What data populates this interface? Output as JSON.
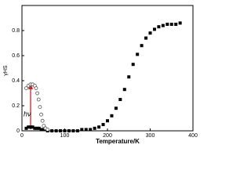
{
  "chart_data": {
    "type": "scatter",
    "x_label": "Temperature/K",
    "y_label": "γHS",
    "annotation": "hν",
    "annotation_color": "#d0202a",
    "xlim": [
      0,
      400
    ],
    "xticks": [
      0,
      100,
      200,
      300,
      400
    ],
    "ylim": [
      0,
      1
    ],
    "yticks": [
      0,
      0.2,
      0.4,
      0.6,
      0.8
    ],
    "series": [
      {
        "color": "#000000",
        "marker": "square",
        "x": [
          10,
          15,
          20,
          25,
          30,
          35,
          40,
          45,
          50,
          55,
          60,
          70,
          80,
          90,
          100,
          110,
          120,
          130,
          140,
          150,
          160,
          170,
          180,
          190,
          200,
          210,
          220,
          230,
          240,
          250,
          260,
          270,
          280,
          290,
          300,
          310,
          320,
          330,
          340,
          350,
          360,
          370
        ],
        "values": [
          0.02,
          0.03,
          0.03,
          0.03,
          0.02,
          0.02,
          0.02,
          0.01,
          0.01,
          0.01,
          0,
          0,
          0,
          0,
          0,
          0,
          0,
          0,
          0.01,
          0.01,
          0.01,
          0.02,
          0.03,
          0.05,
          0.08,
          0.12,
          0.18,
          0.25,
          0.33,
          0.43,
          0.53,
          0.61,
          0.68,
          0.74,
          0.78,
          0.81,
          0.83,
          0.84,
          0.85,
          0.85,
          0.85,
          0.86
        ]
      },
      {
        "color": "#555555",
        "marker": "circle",
        "x": [
          10,
          15,
          20,
          25,
          30,
          33,
          36,
          39,
          42,
          45,
          48,
          51,
          55,
          60
        ],
        "values": [
          0.34,
          0.36,
          0.37,
          0.37,
          0.36,
          0.34,
          0.3,
          0.25,
          0.19,
          0.13,
          0.08,
          0.04,
          0.02,
          0.01
        ]
      }
    ]
  }
}
